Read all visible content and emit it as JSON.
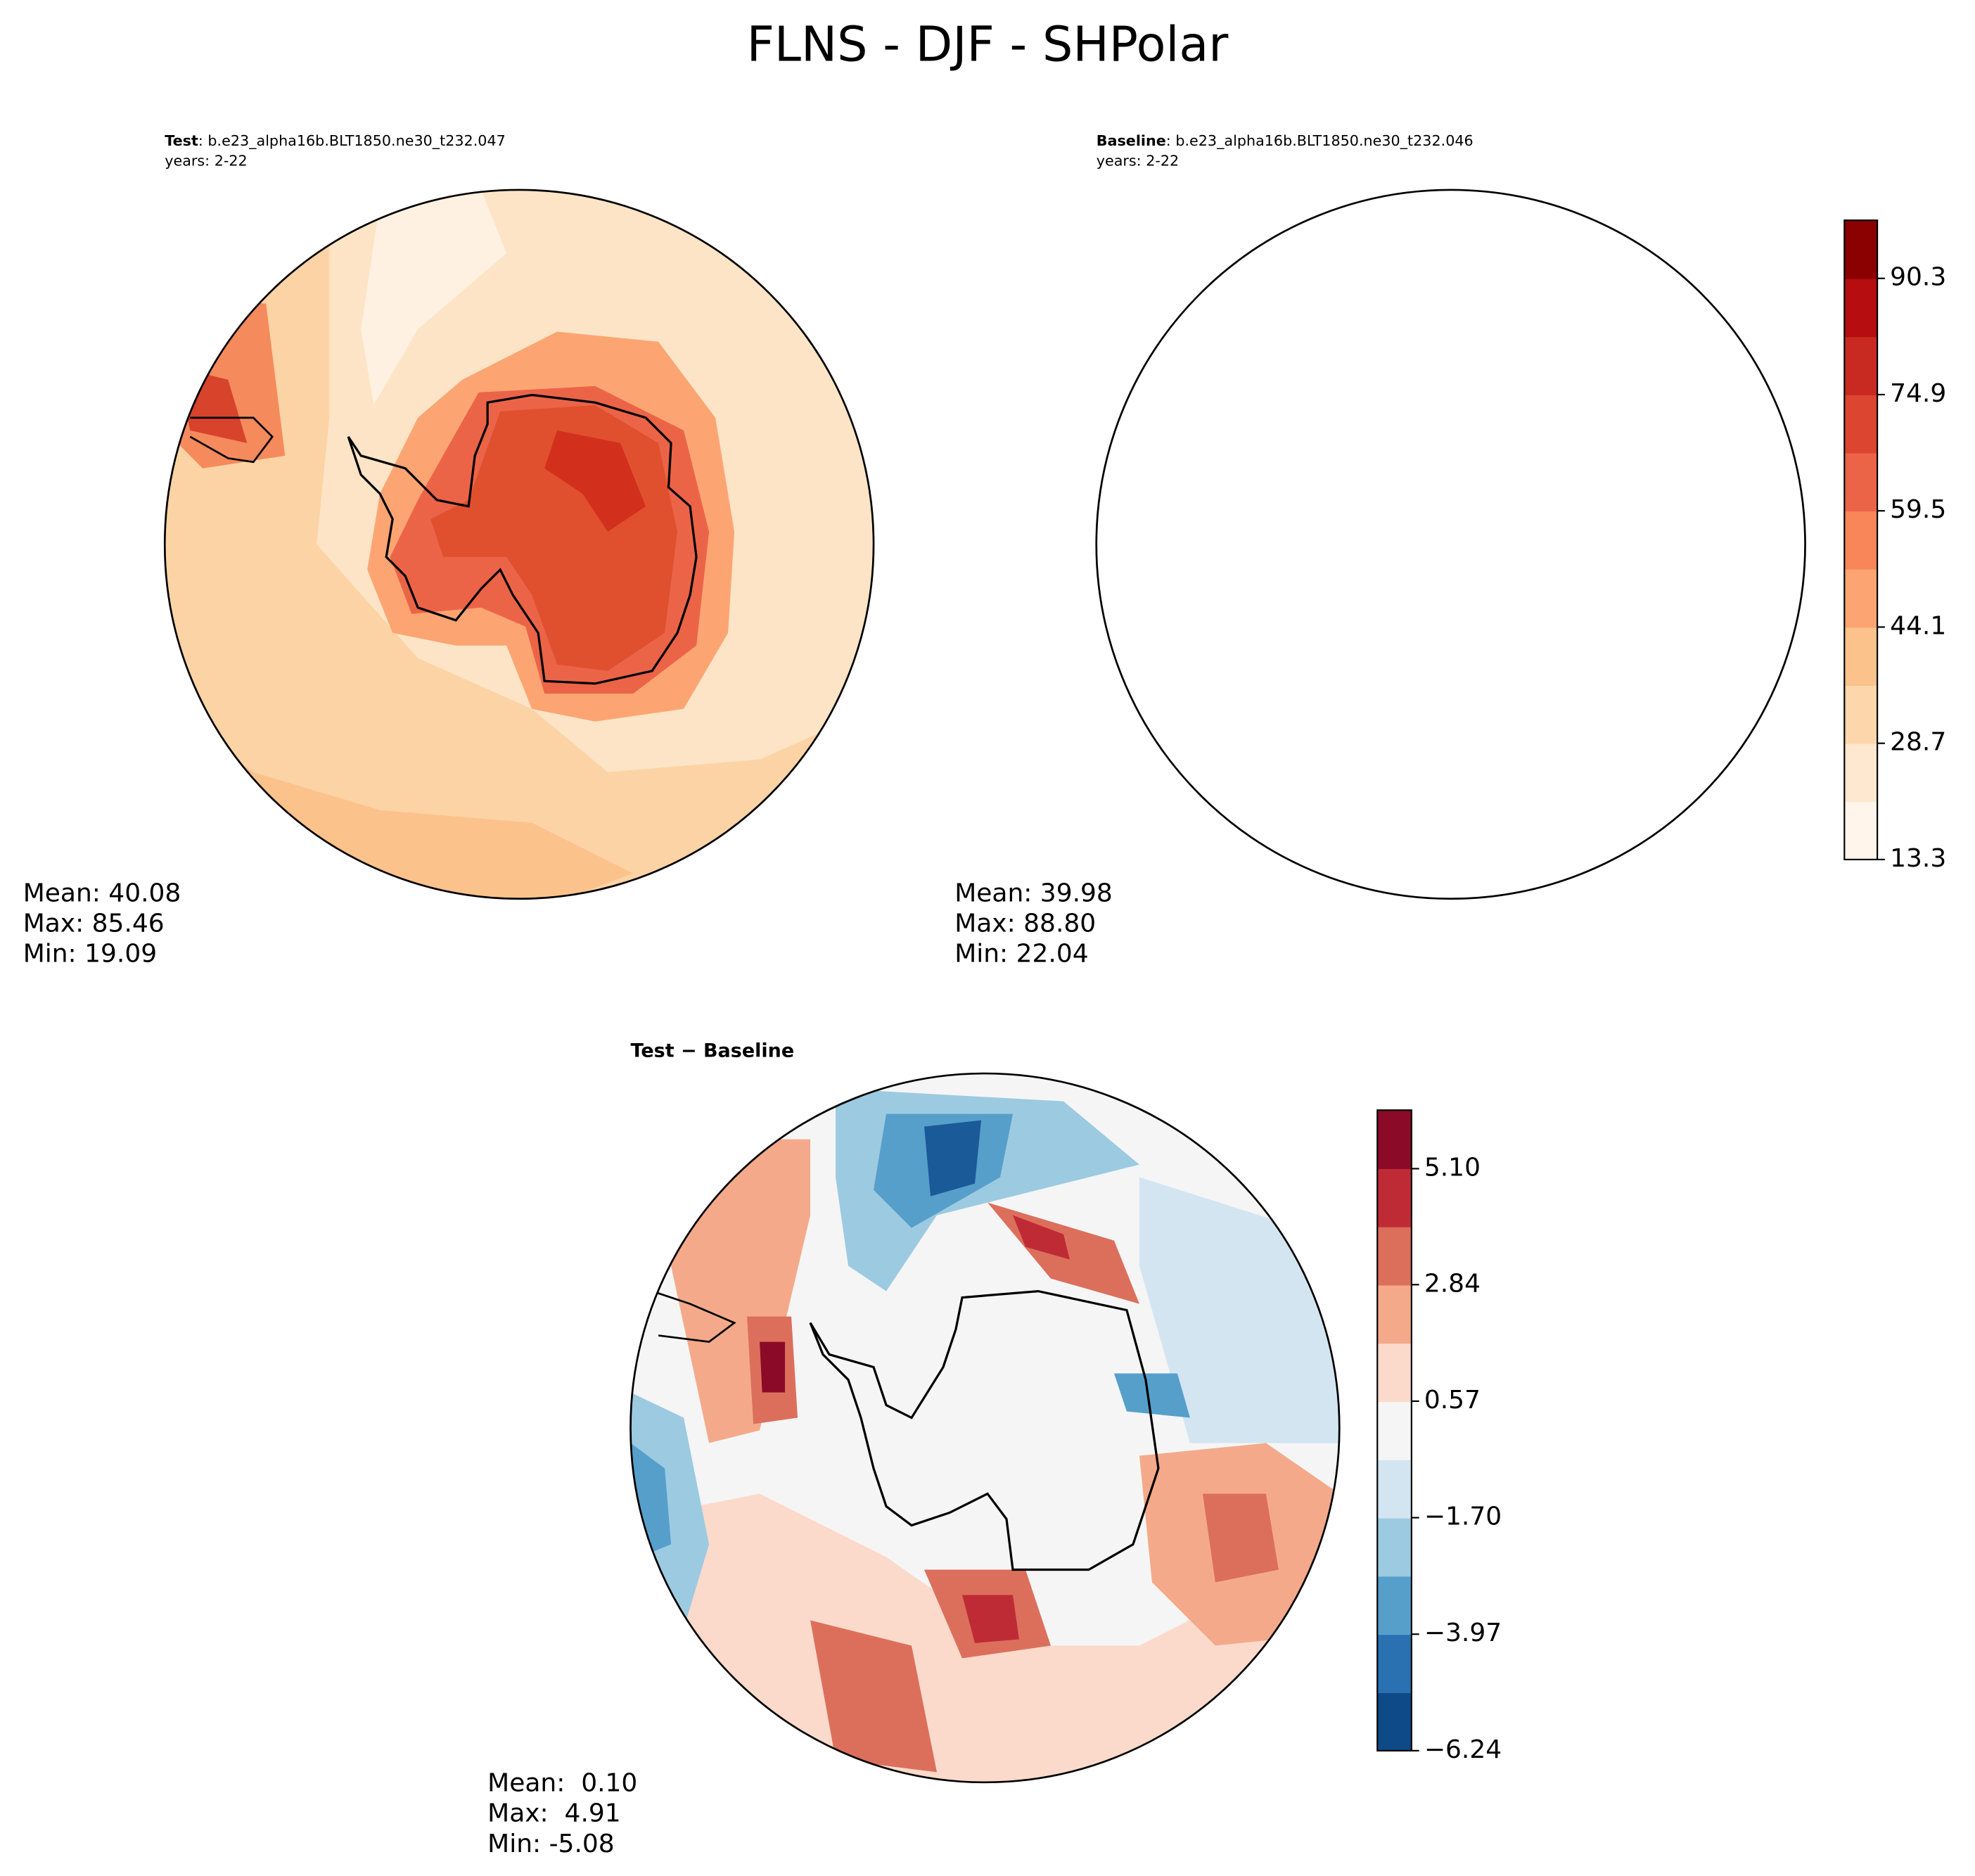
{
  "title": "FLNS - DJF - SHPolar",
  "panels": [
    {
      "label": "Test",
      "case": ": b.e23_alpha16b.BLT1850.ne30_t232.047",
      "years": "years: 2-22",
      "stats": [
        "Mean: 40.08",
        "Max: 85.46",
        "Min: 19.09"
      ]
    },
    {
      "label": "Baseline",
      "case": ": b.e23_alpha16b.BLT1850.ne30_t232.046",
      "years": "years: 2-22",
      "stats": [
        "Mean: 39.98",
        "Max: 88.80",
        "Min: 22.04"
      ]
    },
    {
      "label": "Test − Baseline",
      "stats": [
        "Mean:  0.10",
        "Max:  4.91",
        "Min: -5.08"
      ]
    }
  ],
  "colorbars": [
    {
      "lim": [
        13.3,
        98
      ],
      "ticks": [
        13.3,
        28.7,
        44.1,
        59.5,
        74.9,
        90.3
      ],
      "colors": [
        "#fff5eb",
        "#fee8d0",
        "#fdd7ab",
        "#fcc28c",
        "#fca572",
        "#f98658",
        "#ec6448",
        "#dc4530",
        "#c82a22",
        "#b50d10",
        "#8b0000"
      ]
    },
    {
      "lim": [
        -6.24,
        6.24
      ],
      "ticks": [
        {
          "value": -6.24,
          "label": "−6.24"
        },
        {
          "value": -3.97,
          "label": "−3.97"
        },
        {
          "value": -1.7,
          "label": "−1.70"
        },
        0.57,
        2.84,
        {
          "value": 5.1,
          "label": "5.10"
        }
      ],
      "colors": [
        "#0d4a87",
        "#2a71b2",
        "#569fcb",
        "#9ccae1",
        "#d3e5f1",
        "#f5f5f5",
        "#fbdacb",
        "#f4aa8a",
        "#dc6f5c",
        "#bf2b35",
        "#8a0a28"
      ]
    }
  ]
}
